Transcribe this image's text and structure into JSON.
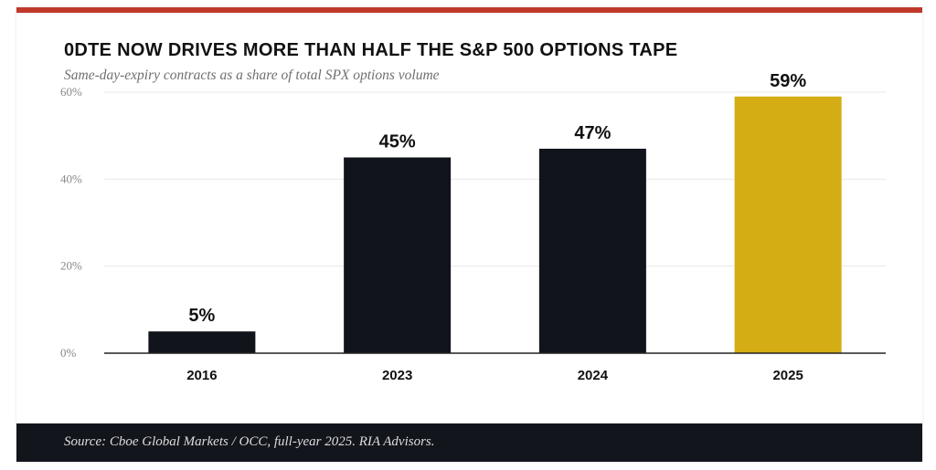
{
  "colors": {
    "accent_rule": "#c0392b",
    "bar_default": "#12141b",
    "bar_highlight": "#d4ac14",
    "footer_bg": "#13151c",
    "grid": "#e8e8e8",
    "axis": "#222222",
    "tick_label": "#888888",
    "category_label": "#111111",
    "data_label": "#111111"
  },
  "chart_data": {
    "type": "bar",
    "title": "0DTE NOW DRIVES MORE THAN HALF THE S&P 500 OPTIONS TAPE",
    "subtitle": "Same-day-expiry contracts as a share of total SPX options volume",
    "xlabel": "",
    "ylabel": "",
    "categories": [
      "2016",
      "2023",
      "2024",
      "2025"
    ],
    "values": [
      5,
      45,
      47,
      59
    ],
    "data_labels": [
      "5%",
      "45%",
      "47%",
      "59%"
    ],
    "highlight": [
      "2025"
    ],
    "ylim": [
      0,
      60
    ],
    "yticks": [
      0,
      20,
      40,
      60
    ],
    "ytick_labels": [
      "0%",
      "20%",
      "40%",
      "60%"
    ],
    "grid": true,
    "legend": "none",
    "source": "Source: Cboe Global Markets / OCC, full-year 2025. RIA Advisors."
  }
}
